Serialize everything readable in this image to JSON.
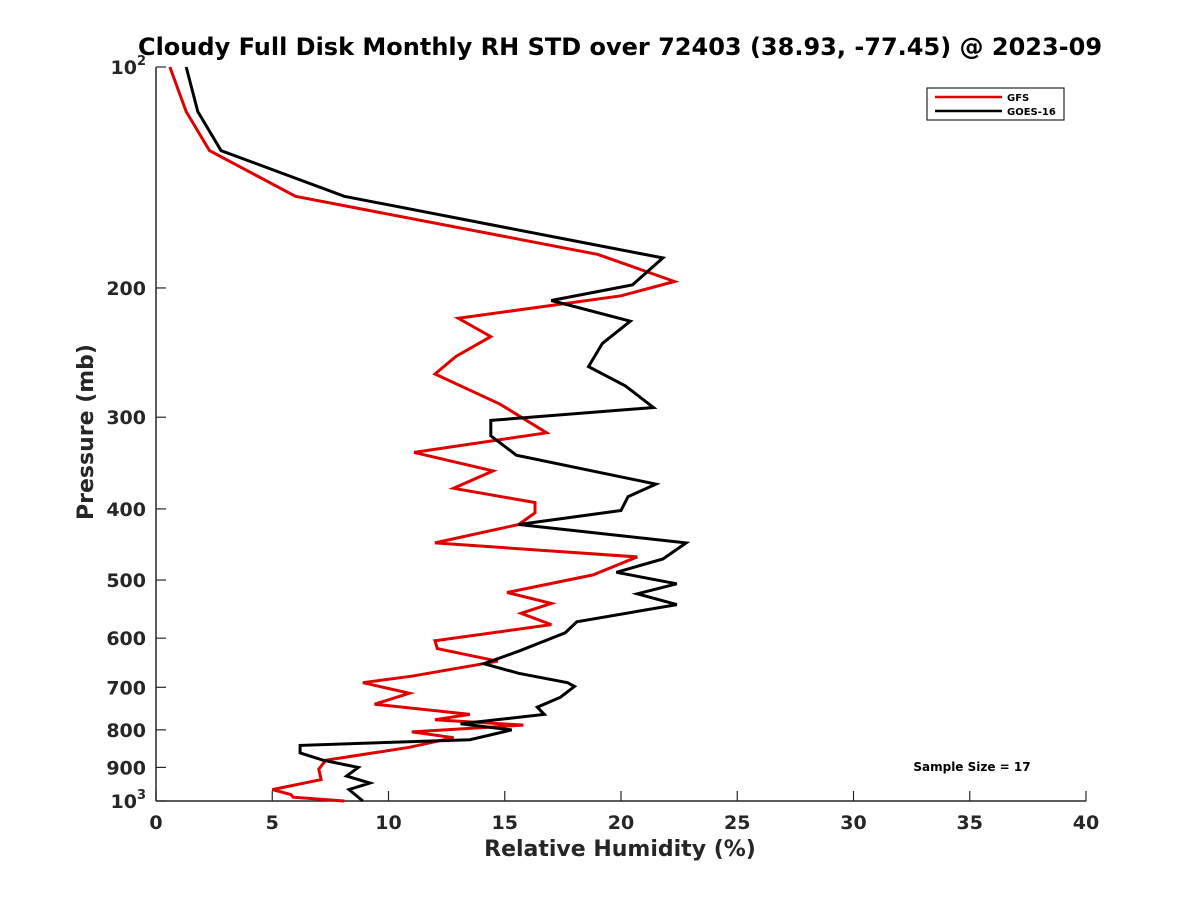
{
  "chart_data": {
    "type": "line",
    "title": "Cloudy Full Disk Monthly RH STD over 72403 (38.93, -77.45) @ 2023-09",
    "xlabel": "Relative Humidity (%)",
    "ylabel": "Pressure (mb)",
    "xlim": [
      0,
      40
    ],
    "ylim": [
      100,
      1000
    ],
    "y_scale": "log",
    "y_reversed": true,
    "grid": false,
    "legend_position": "top-right",
    "x_ticks": [
      0,
      5,
      10,
      15,
      20,
      25,
      30,
      35,
      40
    ],
    "x_tick_labels": [
      "0",
      "5",
      "10",
      "15",
      "20",
      "25",
      "30",
      "35",
      "40"
    ],
    "y_ticks": [
      {
        "value": 100,
        "base": "10",
        "exp": "2"
      },
      {
        "value": 200,
        "text": "200"
      },
      {
        "value": 300,
        "text": "300"
      },
      {
        "value": 400,
        "text": "400"
      },
      {
        "value": 500,
        "text": "500"
      },
      {
        "value": 600,
        "text": "600"
      },
      {
        "value": 700,
        "text": "700"
      },
      {
        "value": 800,
        "text": "800"
      },
      {
        "value": 900,
        "text": "900"
      },
      {
        "value": 1000,
        "base": "10",
        "exp": "3"
      }
    ],
    "annotation": "Sample Size = 17",
    "series": [
      {
        "name": "GFS",
        "color": "#e00000",
        "points": [
          [
            0.6,
            100
          ],
          [
            1.3,
            115
          ],
          [
            2.3,
            130
          ],
          [
            6.0,
            150
          ],
          [
            19.0,
            180
          ],
          [
            22.3,
            196
          ],
          [
            20.0,
            205
          ],
          [
            13.0,
            220
          ],
          [
            14.4,
            233
          ],
          [
            12.9,
            248
          ],
          [
            12.0,
            262
          ],
          [
            14.8,
            288
          ],
          [
            16.8,
            315
          ],
          [
            11.1,
            335
          ],
          [
            14.5,
            355
          ],
          [
            12.8,
            375
          ],
          [
            16.3,
            392
          ],
          [
            16.3,
            405
          ],
          [
            15.6,
            420
          ],
          [
            12.0,
            445
          ],
          [
            20.7,
            465
          ],
          [
            18.8,
            492
          ],
          [
            15.1,
            520
          ],
          [
            17.0,
            538
          ],
          [
            15.7,
            555
          ],
          [
            17.0,
            575
          ],
          [
            12.0,
            605
          ],
          [
            12.1,
            620
          ],
          [
            14.7,
            645
          ],
          [
            11.0,
            676
          ],
          [
            8.9,
            690
          ],
          [
            10.9,
            713
          ],
          [
            9.4,
            738
          ],
          [
            13.5,
            762
          ],
          [
            12.0,
            775
          ],
          [
            15.8,
            788
          ],
          [
            11.0,
            805
          ],
          [
            12.8,
            820
          ],
          [
            10.9,
            845
          ],
          [
            7.3,
            880
          ],
          [
            7.0,
            905
          ],
          [
            7.1,
            935
          ],
          [
            5.0,
            965
          ],
          [
            5.8,
            980
          ],
          [
            5.9,
            988
          ],
          [
            8.1,
            1000
          ]
        ]
      },
      {
        "name": "GOES-16",
        "color": "#000000",
        "points": [
          [
            1.3,
            100
          ],
          [
            1.8,
            115
          ],
          [
            2.8,
            130
          ],
          [
            8.1,
            150
          ],
          [
            19.0,
            175
          ],
          [
            21.8,
            182
          ],
          [
            20.5,
            198
          ],
          [
            17.0,
            208
          ],
          [
            20.4,
            222
          ],
          [
            19.2,
            238
          ],
          [
            18.6,
            256
          ],
          [
            20.2,
            272
          ],
          [
            21.4,
            291
          ],
          [
            14.4,
            303
          ],
          [
            14.4,
            318
          ],
          [
            15.5,
            338
          ],
          [
            21.5,
            370
          ],
          [
            20.3,
            385
          ],
          [
            20.0,
            402
          ],
          [
            15.6,
            420
          ],
          [
            22.8,
            445
          ],
          [
            21.8,
            468
          ],
          [
            19.8,
            488
          ],
          [
            22.4,
            506
          ],
          [
            20.7,
            522
          ],
          [
            22.4,
            540
          ],
          [
            18.1,
            570
          ],
          [
            17.6,
            590
          ],
          [
            15.6,
            625
          ],
          [
            14.1,
            650
          ],
          [
            15.6,
            670
          ],
          [
            17.7,
            690
          ],
          [
            18.0,
            698
          ],
          [
            17.4,
            722
          ],
          [
            16.4,
            745
          ],
          [
            16.7,
            762
          ],
          [
            13.1,
            785
          ],
          [
            15.3,
            800
          ],
          [
            13.5,
            825
          ],
          [
            6.2,
            840
          ],
          [
            6.2,
            860
          ],
          [
            7.2,
            880
          ],
          [
            8.7,
            900
          ],
          [
            8.2,
            925
          ],
          [
            9.2,
            945
          ],
          [
            8.3,
            965
          ],
          [
            8.9,
            1000
          ]
        ]
      }
    ]
  }
}
